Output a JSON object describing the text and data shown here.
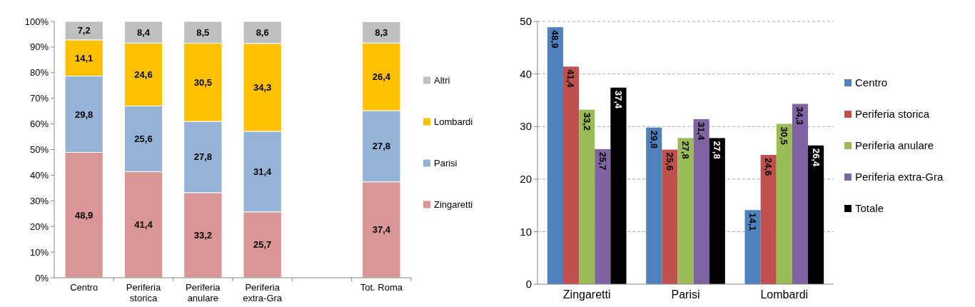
{
  "chart_data": [
    {
      "type": "bar",
      "stacked": true,
      "categories": [
        "Centro",
        "Periferia storica",
        "Periferia anulare",
        "Periferia extra-Gra",
        null,
        "Tot. Roma"
      ],
      "ylim": [
        0,
        100
      ],
      "yticks": [
        {
          "value": 0,
          "label": "0%"
        },
        {
          "value": 10,
          "label": "10%"
        },
        {
          "value": 20,
          "label": "20%"
        },
        {
          "value": 30,
          "label": "30%"
        },
        {
          "value": 40,
          "label": "40%"
        },
        {
          "value": 50,
          "label": "50%"
        },
        {
          "value": 60,
          "label": "60%"
        },
        {
          "value": 70,
          "label": "70%"
        },
        {
          "value": 80,
          "label": "80%"
        },
        {
          "value": 90,
          "label": "90%"
        },
        {
          "value": 100,
          "label": "100%"
        }
      ],
      "legend": "right",
      "series": [
        {
          "name": "Zingaretti",
          "color": "#d99694",
          "values": [
            48.9,
            41.4,
            33.2,
            25.7,
            null,
            37.4
          ],
          "value_labels": [
            "48,9",
            "41,4",
            "33,2",
            "25,7",
            null,
            "37,4"
          ]
        },
        {
          "name": "Parisi",
          "color": "#95b3d7",
          "values": [
            29.8,
            25.6,
            27.8,
            31.4,
            null,
            27.8
          ],
          "value_labels": [
            "29,8",
            "25,6",
            "27,8",
            "31,4",
            null,
            "27,8"
          ]
        },
        {
          "name": "Lombardi",
          "color": "#ffc000",
          "values": [
            14.1,
            24.6,
            30.5,
            34.3,
            null,
            26.4
          ],
          "value_labels": [
            "14,1",
            "24,6",
            "30,5",
            "34,3",
            null,
            "26,4"
          ]
        },
        {
          "name": "Altri",
          "color": "#bfbfbf",
          "values": [
            7.2,
            8.4,
            8.5,
            8.6,
            null,
            8.3
          ],
          "value_labels": [
            "7,2",
            "8,4",
            "8,5",
            "8,6",
            null,
            "8,3"
          ]
        }
      ]
    },
    {
      "type": "bar",
      "categories": [
        "Zingaretti",
        "Parisi",
        "Lombardi"
      ],
      "ylim": [
        0,
        50
      ],
      "yticks": [
        0,
        10,
        20,
        30,
        40,
        50
      ],
      "grid": "y",
      "legend": "right",
      "series": [
        {
          "name": "Centro",
          "color": "#4f81bd",
          "values": [
            48.9,
            29.8,
            14.1
          ],
          "value_labels": [
            "48,9",
            "29,8",
            "14,1"
          ]
        },
        {
          "name": "Periferia storica",
          "color": "#c0504d",
          "values": [
            41.4,
            25.6,
            24.6
          ],
          "value_labels": [
            "41,4",
            "25,6",
            "24,6"
          ]
        },
        {
          "name": "Periferia anulare",
          "color": "#9bbb59",
          "values": [
            33.2,
            27.8,
            30.5
          ],
          "value_labels": [
            "33,2",
            "27,8",
            "30,5"
          ]
        },
        {
          "name": "Periferia extra-Gra",
          "color": "#8064a2",
          "values": [
            25.7,
            31.4,
            34.3
          ],
          "value_labels": [
            "25,7",
            "31,4",
            "34,3"
          ]
        },
        {
          "name": "Totale",
          "color": "#000000",
          "values": [
            37.4,
            27.8,
            26.4
          ],
          "value_labels": [
            "37,4",
            "27,8",
            "26,4"
          ]
        }
      ]
    }
  ]
}
